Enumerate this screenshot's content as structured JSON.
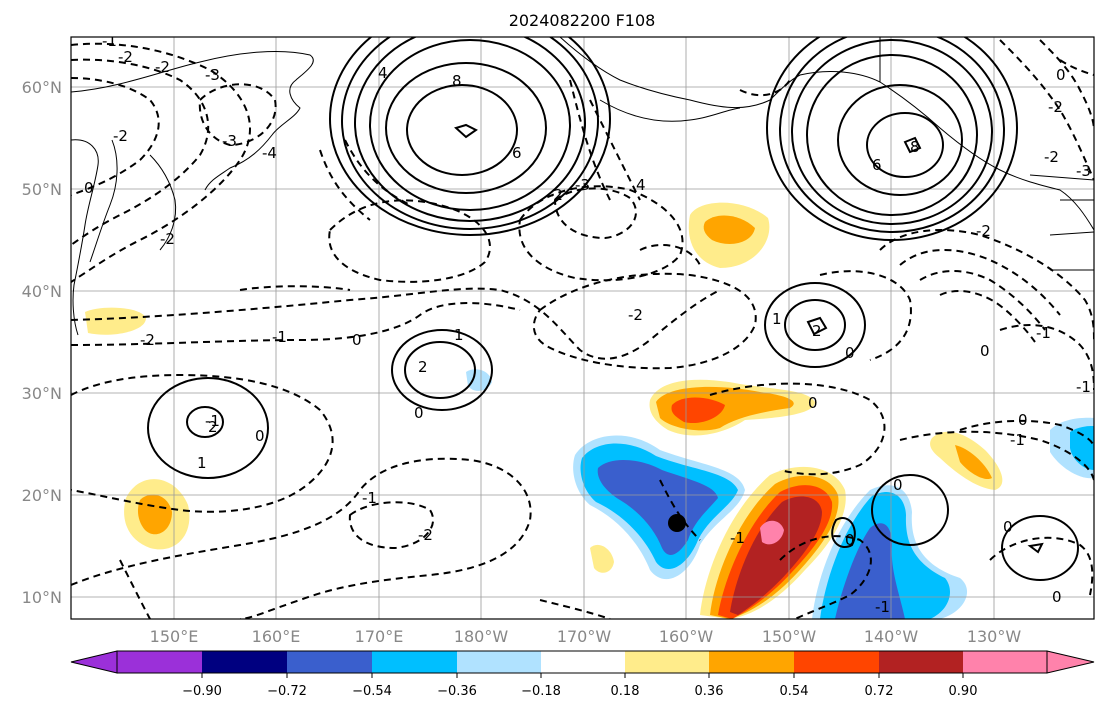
{
  "title": "2024082200 F108",
  "lat_labels": [
    "60°N",
    "50°N",
    "40°N",
    "30°N",
    "20°N",
    "10°N"
  ],
  "lon_labels": [
    "150°E",
    "160°E",
    "170°E",
    "180°W",
    "170°W",
    "160°W",
    "150°W",
    "140°W",
    "130°W"
  ],
  "colorbar": {
    "tick_labels": [
      "−0.90",
      "−0.72",
      "−0.54",
      "−0.36",
      "−0.18",
      "0.18",
      "0.36",
      "0.54",
      "0.72",
      "0.90"
    ],
    "colors": [
      "#9b30d9",
      "#000080",
      "#3a5fcd",
      "#00bfff",
      "#b0e2ff",
      "#ffffff",
      "#ffec8b",
      "#ffa500",
      "#ff4500",
      "#b22222",
      "#ff82ab"
    ]
  },
  "contour_labels": {
    "c1": "-1",
    "c2": "-2",
    "c3": "-2",
    "c4": "-3",
    "c5": "4",
    "c6": "8",
    "c7": "6",
    "c8": "-2",
    "c9": "0",
    "c10": "-2",
    "c11": "-3",
    "c12": "-4",
    "c13": "-2",
    "c14": "-3",
    "c15": "4",
    "c16": "6",
    "c17": "8",
    "c18": "0",
    "c19": "-3",
    "c20": "-1",
    "c21": "-2",
    "c22": "-1",
    "c23": "-2",
    "c24": "0",
    "c25": "2",
    "c26": "1",
    "c27": "0",
    "c28": "-2",
    "c29": "1",
    "c30": "2",
    "c31": "0",
    "c32": "0",
    "c33": "-1",
    "c34": "2",
    "c35": "0",
    "c36": "1",
    "c37": "-1",
    "c38": "-2",
    "c39": "-1",
    "c40": "0",
    "c41": "0",
    "c42": "-1",
    "c43": "0",
    "c44": "-1",
    "c45": "0",
    "c46": "0",
    "c47": "-2",
    "c48": "-1",
    "c49": "-2",
    "c50": "0"
  },
  "marker": "storm-center-dot"
}
